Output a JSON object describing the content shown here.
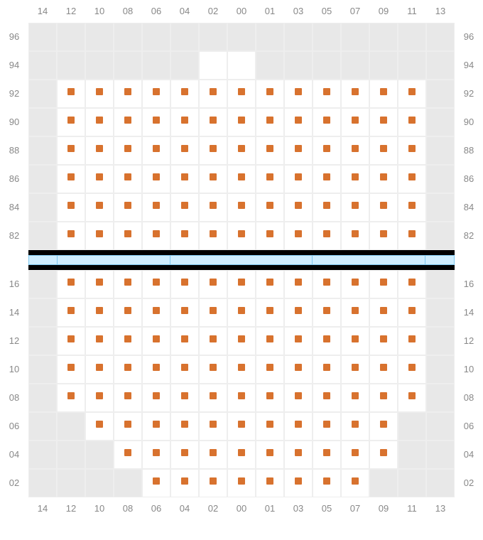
{
  "type": "seat-map",
  "background_color": "#ffffff",
  "blank_color": "#e8e8e8",
  "white_color": "#ffffff",
  "grid_border_color": "#eeeeee",
  "marker_color": "#d8722e",
  "marker_size": 10,
  "label_color": "#888888",
  "label_fontsize": 13,
  "cell_size": 40,
  "columns": [
    "14",
    "12",
    "10",
    "08",
    "06",
    "04",
    "02",
    "00",
    "01",
    "03",
    "05",
    "07",
    "09",
    "11",
    "13"
  ],
  "top": {
    "rows": [
      "96",
      "94",
      "92",
      "90",
      "88",
      "86",
      "84",
      "82"
    ],
    "cells": [
      [
        "b",
        "b",
        "b",
        "b",
        "b",
        "b",
        "b",
        "b",
        "b",
        "b",
        "b",
        "b",
        "b",
        "b",
        "b"
      ],
      [
        "b",
        "b",
        "b",
        "b",
        "b",
        "b",
        "w",
        "w",
        "b",
        "b",
        "b",
        "b",
        "b",
        "b",
        "b"
      ],
      [
        "b",
        "m",
        "m",
        "m",
        "m",
        "m",
        "m",
        "m",
        "m",
        "m",
        "m",
        "m",
        "m",
        "m",
        "b"
      ],
      [
        "b",
        "m",
        "m",
        "m",
        "m",
        "m",
        "m",
        "m",
        "m",
        "m",
        "m",
        "m",
        "m",
        "m",
        "b"
      ],
      [
        "b",
        "m",
        "m",
        "m",
        "m",
        "m",
        "m",
        "m",
        "m",
        "m",
        "m",
        "m",
        "m",
        "m",
        "b"
      ],
      [
        "b",
        "m",
        "m",
        "m",
        "m",
        "m",
        "m",
        "m",
        "m",
        "m",
        "m",
        "m",
        "m",
        "m",
        "b"
      ],
      [
        "b",
        "m",
        "m",
        "m",
        "m",
        "m",
        "m",
        "m",
        "m",
        "m",
        "m",
        "m",
        "m",
        "m",
        "b"
      ],
      [
        "b",
        "m",
        "m",
        "m",
        "m",
        "m",
        "m",
        "m",
        "m",
        "m",
        "m",
        "m",
        "m",
        "m",
        "b"
      ]
    ]
  },
  "divider": {
    "black_height": 7,
    "blue_height": 14,
    "blue_bg": "#cfeeff",
    "blue_border": "#7ec8f0",
    "segments_pct": [
      6.7,
      26.6,
      33.4,
      26.6,
      6.7
    ]
  },
  "bottom": {
    "rows": [
      "16",
      "14",
      "12",
      "10",
      "08",
      "06",
      "04",
      "02"
    ],
    "cells": [
      [
        "b",
        "m",
        "m",
        "m",
        "m",
        "m",
        "m",
        "m",
        "m",
        "m",
        "m",
        "m",
        "m",
        "m",
        "b"
      ],
      [
        "b",
        "m",
        "m",
        "m",
        "m",
        "m",
        "m",
        "m",
        "m",
        "m",
        "m",
        "m",
        "m",
        "m",
        "b"
      ],
      [
        "b",
        "m",
        "m",
        "m",
        "m",
        "m",
        "m",
        "m",
        "m",
        "m",
        "m",
        "m",
        "m",
        "m",
        "b"
      ],
      [
        "b",
        "m",
        "m",
        "m",
        "m",
        "m",
        "m",
        "m",
        "m",
        "m",
        "m",
        "m",
        "m",
        "m",
        "b"
      ],
      [
        "b",
        "m",
        "m",
        "m",
        "m",
        "m",
        "m",
        "m",
        "m",
        "m",
        "m",
        "m",
        "m",
        "m",
        "b"
      ],
      [
        "b",
        "b",
        "m",
        "m",
        "m",
        "m",
        "m",
        "m",
        "m",
        "m",
        "m",
        "m",
        "m",
        "b",
        "b"
      ],
      [
        "b",
        "b",
        "b",
        "m",
        "m",
        "m",
        "m",
        "m",
        "m",
        "m",
        "m",
        "m",
        "m",
        "b",
        "b"
      ],
      [
        "b",
        "b",
        "b",
        "b",
        "m",
        "m",
        "m",
        "m",
        "m",
        "m",
        "m",
        "m",
        "b",
        "b",
        "b"
      ]
    ]
  }
}
